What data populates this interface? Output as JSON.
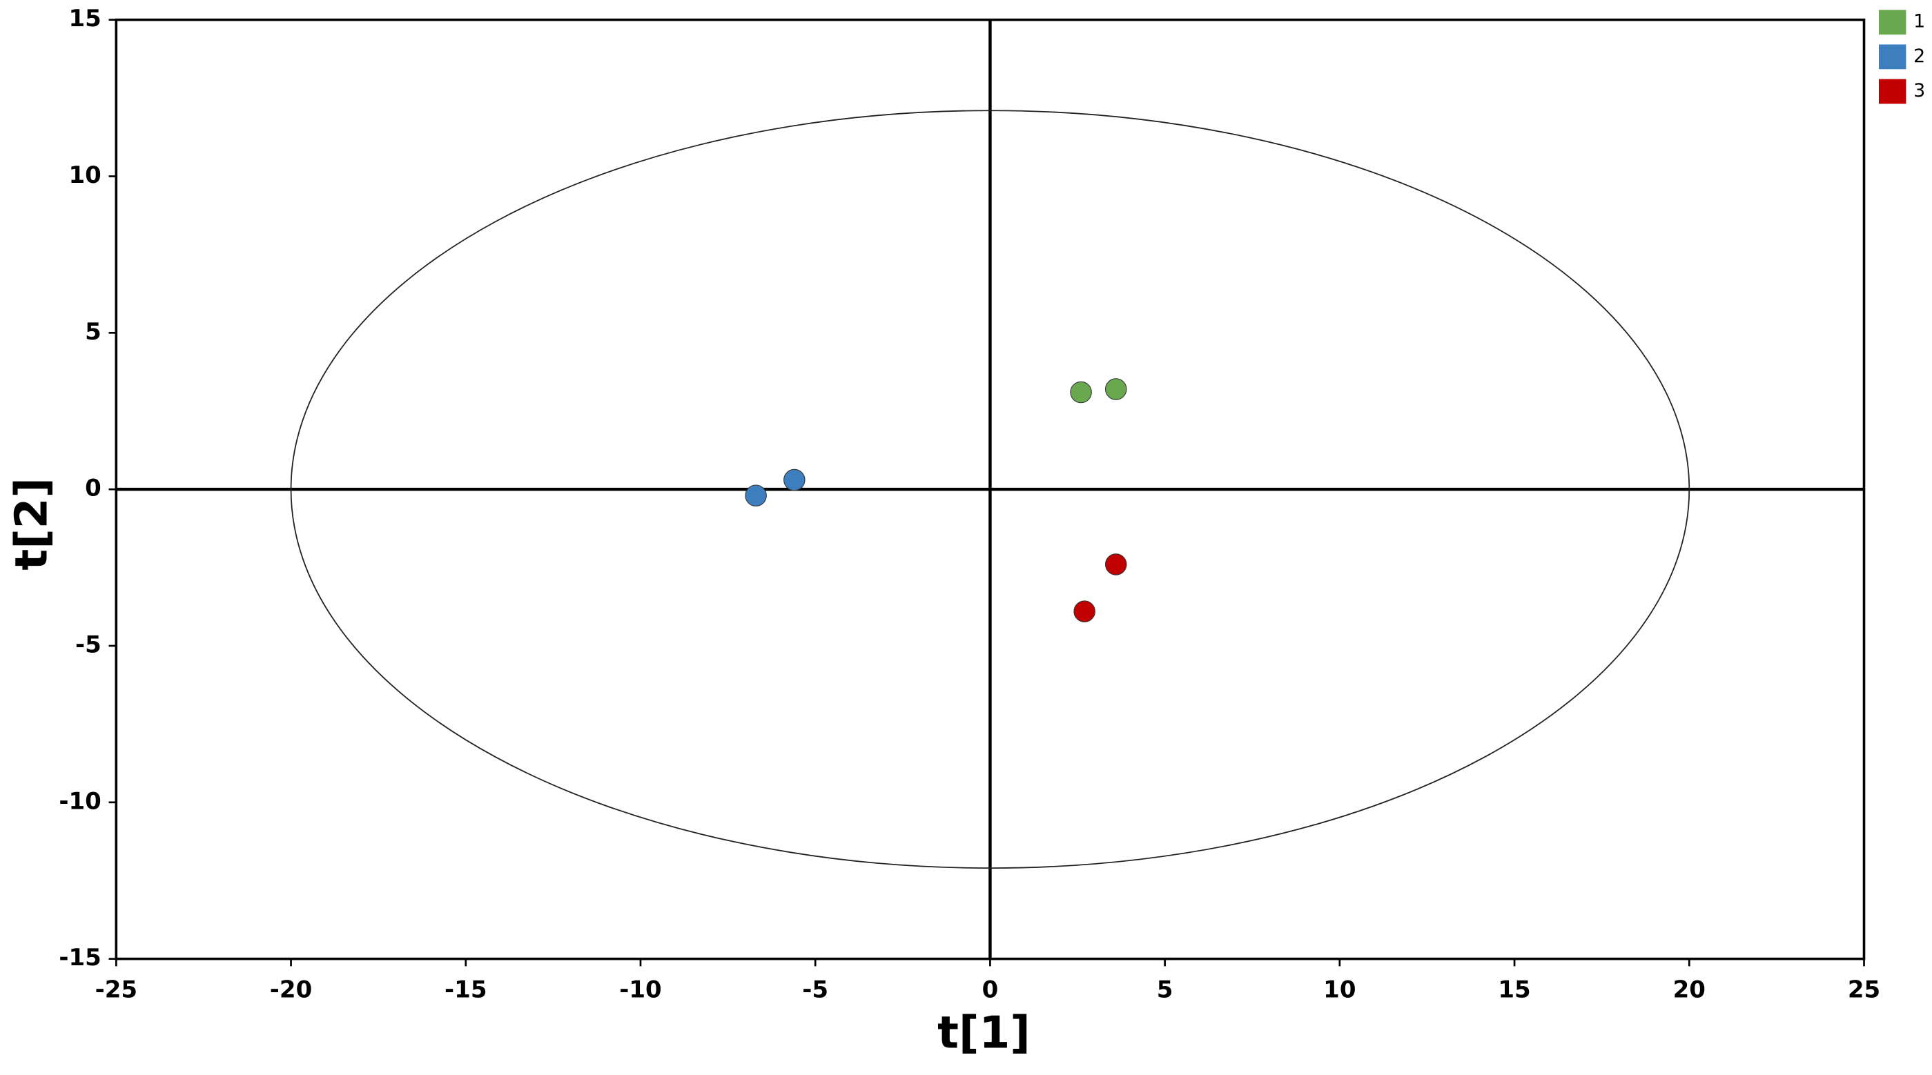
{
  "chart_data": {
    "type": "scatter",
    "x_label": "t[1]",
    "y_label": "t[2]",
    "xlim": [
      -25,
      25
    ],
    "ylim": [
      -15,
      15
    ],
    "xticks": [
      -25,
      -20,
      -15,
      -10,
      -5,
      0,
      5,
      10,
      15,
      20,
      25
    ],
    "yticks": [
      -15,
      -10,
      -5,
      0,
      5,
      10,
      15
    ],
    "ellipse": {
      "rx": 20,
      "ry": 12.1
    },
    "legend": "top-right",
    "series": [
      {
        "name": "1",
        "color": "#6aa84f",
        "x": [
          2.6,
          3.6
        ],
        "y": [
          3.1,
          3.2
        ]
      },
      {
        "name": "2",
        "color": "#3d7ebf",
        "x": [
          -6.7,
          -5.6
        ],
        "y": [
          -0.2,
          0.3
        ]
      },
      {
        "name": "3",
        "color": "#c00000",
        "x": [
          3.6,
          2.7
        ],
        "y": [
          -2.4,
          -3.9
        ]
      }
    ]
  }
}
